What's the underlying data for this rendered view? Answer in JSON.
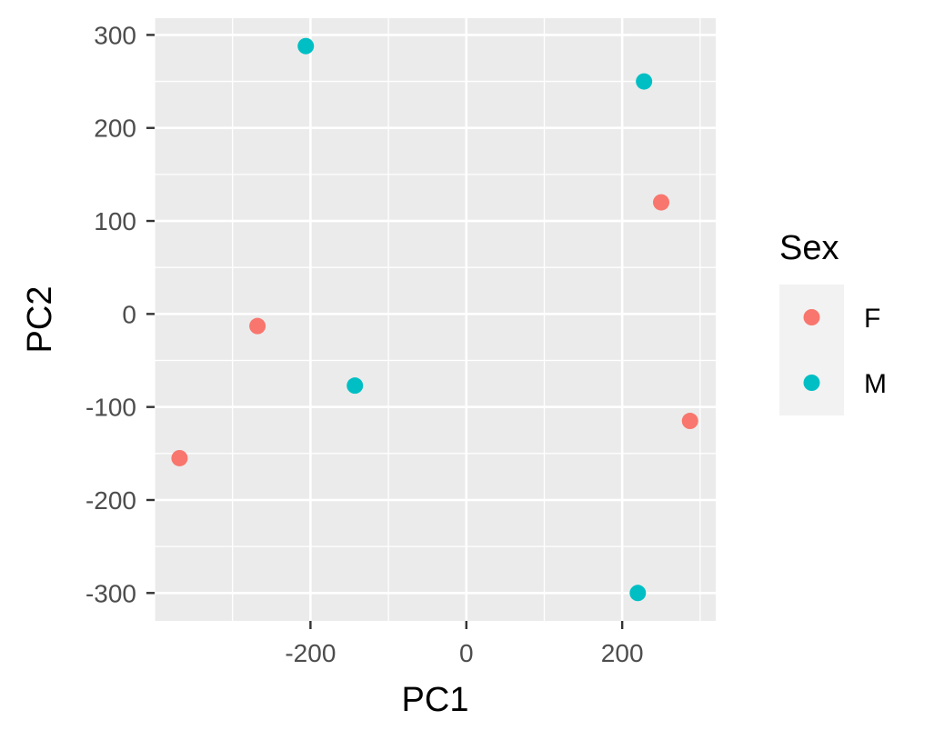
{
  "chart_data": {
    "type": "scatter",
    "xlabel": "PC1",
    "ylabel": "PC2",
    "xlim": [
      -400,
      320
    ],
    "ylim": [
      -330,
      318
    ],
    "x_ticks": [
      -200,
      0,
      200
    ],
    "x_tick_labels": [
      "-200",
      "0",
      "200"
    ],
    "y_ticks": [
      -300,
      -200,
      -100,
      0,
      100,
      200,
      300
    ],
    "y_tick_labels": [
      "-300",
      "-200",
      "-100",
      "0",
      "100",
      "200",
      "300"
    ],
    "grid": true,
    "legend": {
      "title": "Sex",
      "placement": "right",
      "entries": [
        {
          "label": "F",
          "color": "#F8766D"
        },
        {
          "label": "M",
          "color": "#00BFC4"
        }
      ]
    },
    "series": [
      {
        "name": "F",
        "color": "#F8766D",
        "points": [
          {
            "x": -368,
            "y": -155
          },
          {
            "x": -268,
            "y": -13
          },
          {
            "x": 250,
            "y": 120
          },
          {
            "x": 287,
            "y": -115
          }
        ]
      },
      {
        "name": "M",
        "color": "#00BFC4",
        "points": [
          {
            "x": -206,
            "y": 288
          },
          {
            "x": -143,
            "y": -77
          },
          {
            "x": 228,
            "y": 250
          },
          {
            "x": 220,
            "y": -300
          }
        ]
      }
    ]
  },
  "colors": {
    "panel_background": "#EBEBEB",
    "grid_line": "#FFFFFF",
    "tick_mark": "#333333",
    "tick_label": "#4D4D4D",
    "legend_key_background": "#F2F2F2"
  }
}
